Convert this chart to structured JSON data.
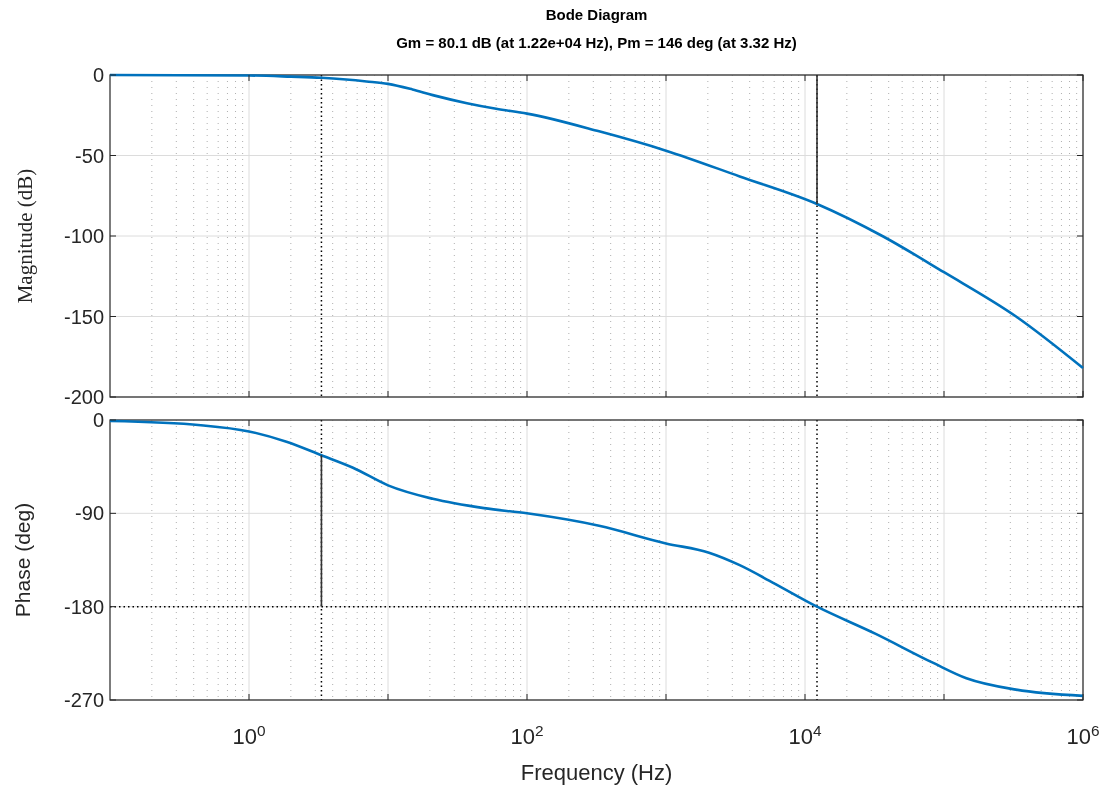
{
  "chart_data": [
    {
      "type": "line",
      "title": "Bode Diagram",
      "subtitle": "Gm = 80.1 dB (at 1.22e+04 Hz),  Pm = 146 deg (at 3.32 Hz)",
      "ylabel": "Magnitude (dB)",
      "log": "x",
      "grid": true,
      "tick_labels": "y",
      "xlim": [
        0.1,
        1000000
      ],
      "ylim": [
        -200,
        0
      ],
      "xticks": [
        {
          "value": 1,
          "label": null
        },
        {
          "value": 10,
          "label": null
        },
        {
          "value": 100,
          "label": null
        },
        {
          "value": 1000,
          "label": null
        },
        {
          "value": 10000,
          "label": null
        },
        {
          "value": 100000,
          "label": null
        },
        {
          "value": 1000000,
          "label": null
        }
      ],
      "yticks": [
        -200,
        -150,
        -100,
        -50,
        0
      ],
      "ref_lines": [
        {
          "axis": "x",
          "value": 3.32,
          "color": "#000000",
          "line_style": "dotted"
        },
        {
          "axis": "x",
          "value": 12200,
          "color": "#000000",
          "line_style": "dotted"
        }
      ],
      "series": [
        {
          "color": "#0072bd",
          "x": [
            0.1,
            1,
            2,
            3.32,
            5,
            7,
            10,
            15,
            21,
            37,
            60,
            100,
            330,
            1000,
            3390,
            12200,
            36000,
            100000,
            330000,
            1000000
          ],
          "values": [
            0,
            -0.3,
            -1,
            -1.7,
            -2.8,
            -4,
            -5.5,
            -9,
            -12.5,
            -17.5,
            -21,
            -24,
            -35,
            -47,
            -63,
            -80.1,
            -100,
            -122.5,
            -150,
            -182
          ]
        },
        {
          "color": "#333333",
          "x": [
            12200,
            12200
          ],
          "values": [
            0,
            -80.1
          ]
        }
      ]
    },
    {
      "type": "line",
      "ylabel": "Phase (deg)",
      "xlabel": "Frequency  (Hz)",
      "log": "x",
      "grid": true,
      "xlim": [
        0.1,
        1000000
      ],
      "ylim": [
        -270,
        0
      ],
      "xticks": [
        {
          "value": 1,
          "label": "10$^{0}$"
        },
        {
          "value": 10,
          "label": null
        },
        {
          "value": 100,
          "label": "10$^{2}$"
        },
        {
          "value": 1000,
          "label": null
        },
        {
          "value": 10000,
          "label": "10$^{4}$"
        },
        {
          "value": 100000,
          "label": null
        },
        {
          "value": 1000000,
          "label": "10$^{6}$"
        }
      ],
      "yticks": [
        -270,
        -180,
        -90,
        0
      ],
      "ref_lines": [
        {
          "axis": "y",
          "value": -180,
          "color": "#000000",
          "line_style": "dotted"
        },
        {
          "axis": "x",
          "value": 3.32,
          "color": "#000000",
          "line_style": "dotted"
        },
        {
          "axis": "x",
          "value": 12200,
          "color": "#000000",
          "line_style": "dotted"
        }
      ],
      "series": [
        {
          "color": "#0072bd",
          "x": [
            0.1,
            0.45,
            1,
            1.86,
            3.32,
            5.6,
            10,
            21,
            49,
            100,
            330,
            1000,
            2040,
            3390,
            5900,
            12200,
            32000,
            83000,
            145000,
            330000,
            1000000
          ],
          "values": [
            -1,
            -5,
            -11,
            -21,
            -34,
            -46,
            -63,
            -76,
            -85,
            -90,
            -102,
            -119,
            -128,
            -140,
            -157,
            -180,
            -206,
            -234,
            -249,
            -260,
            -266
          ]
        },
        {
          "color": "#333333",
          "x": [
            3.32,
            3.32
          ],
          "values": [
            -34,
            -180
          ]
        }
      ]
    }
  ]
}
